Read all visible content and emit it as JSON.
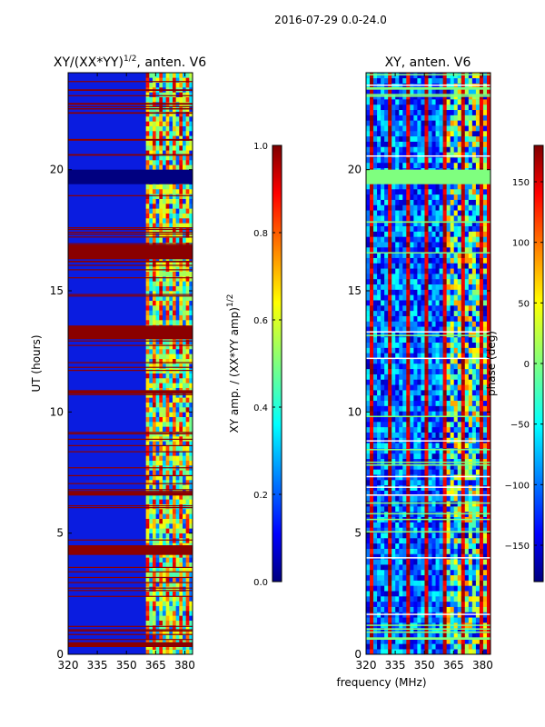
{
  "figure": {
    "suptitle": "2016-07-29 0.0-24.0"
  },
  "colors": {
    "jet": [
      "#00007f",
      "#0000ff",
      "#007fff",
      "#00ffff",
      "#7fff7f",
      "#ffff00",
      "#ff7f00",
      "#ff0000",
      "#7f0000"
    ],
    "background_amp": "#0a1ce0",
    "flag_amp": "#8b0000",
    "gap_phase": "#7fff7f"
  },
  "chart_data": [
    {
      "type": "heatmap",
      "title": "XY/(XX*YY)",
      "title_sup": "1/2",
      "title_suffix": ", anten. V6",
      "xlabel": "",
      "ylabel": "UT (hours)",
      "xlim": [
        320,
        384
      ],
      "ylim": [
        0,
        24
      ],
      "xticks": [
        320,
        335,
        350,
        365,
        380
      ],
      "yticks": [
        0,
        5,
        10,
        15,
        20
      ],
      "flagged_bands_hours": [
        [
          0.3,
          0.5
        ],
        [
          4.1,
          4.5
        ],
        [
          6.55,
          6.7
        ],
        [
          10.75,
          10.9
        ],
        [
          13.0,
          13.5
        ],
        [
          16.3,
          16.9
        ],
        [
          19.4,
          20.0
        ]
      ],
      "active_freq_range_mhz": [
        360,
        384
      ]
    },
    {
      "type": "heatmap",
      "title": "XY, anten. V6",
      "xlabel": "frequency (MHz)",
      "ylabel": "",
      "xlim": [
        320,
        384
      ],
      "ylim": [
        0,
        24
      ],
      "xticks": [
        320,
        335,
        350,
        365,
        380
      ],
      "yticks": [
        0,
        5,
        10,
        15,
        20
      ],
      "gap_bands_hours": [
        [
          19.4,
          20.0
        ],
        [
          23.3,
          23.4
        ],
        [
          0.6,
          0.7
        ]
      ]
    }
  ],
  "colorbars": [
    {
      "label": "XY amp. / (XX*YY amp)",
      "label_sup": "1/2",
      "range": [
        0.0,
        1.0
      ],
      "ticks": [
        "0.0",
        "0.2",
        "0.4",
        "0.6",
        "0.8",
        "1.0"
      ]
    },
    {
      "label": "phase (deg)",
      "range": [
        -180,
        180
      ],
      "ticks": [
        "−150",
        "−100",
        "−50",
        "0",
        "50",
        "100",
        "150"
      ]
    }
  ]
}
